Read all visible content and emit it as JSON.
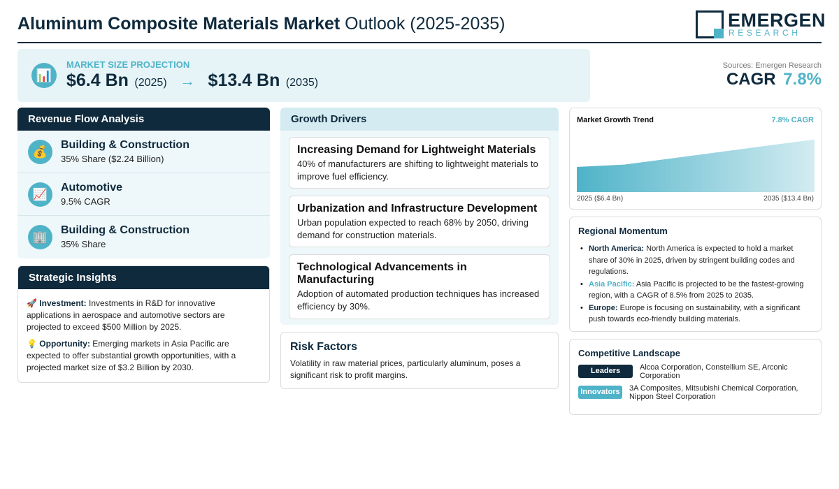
{
  "header": {
    "title_bold": "Aluminum Composite Materials Market",
    "title_light": "Outlook (2025-2035)",
    "logo_main": "EMERGEN",
    "logo_sub": "RESEARCH"
  },
  "market_size": {
    "label": "MARKET SIZE PROJECTION",
    "start_value": "$6.4 Bn",
    "start_year": "(2025)",
    "arrow": "→",
    "end_value": "$13.4 Bn",
    "end_year": "(2035)",
    "icon": "bar-chart-icon"
  },
  "sources": "Sources: Emergen Research",
  "cagr": {
    "label": "CAGR",
    "value": "7.8%"
  },
  "revenue_flow": {
    "title": "Revenue Flow Analysis",
    "items": [
      {
        "icon": "money-bag-icon",
        "glyph": "💰",
        "title": "Building & Construction",
        "sub": "35% Share ($2.24 Billion)"
      },
      {
        "icon": "trend-up-icon",
        "glyph": "📈",
        "title": "Automotive",
        "sub": "9.5% CAGR"
      },
      {
        "icon": "building-icon",
        "glyph": "🏢",
        "title": "Building & Construction",
        "sub": "35% Share"
      }
    ]
  },
  "strategic": {
    "title": "Strategic Insights",
    "items": [
      {
        "glyph": "🚀",
        "label": "Investment:",
        "text": "Investments in R&D for innovative applications in aerospace and automotive sectors are projected to exceed $500 Million by 2025."
      },
      {
        "glyph": "💡",
        "label": "Opportunity:",
        "text": "Emerging markets in Asia Pacific are expected to offer substantial growth opportunities, with a projected market size of $3.2 Billion by 2030."
      }
    ]
  },
  "drivers": {
    "title": "Growth Drivers",
    "items": [
      {
        "title": "Increasing Demand for Lightweight Materials",
        "text": "40% of manufacturers are shifting to lightweight materials to improve fuel efficiency."
      },
      {
        "title": "Urbanization and Infrastructure Development",
        "text": "Urban population expected to reach 68% by 2050, driving demand for construction materials."
      },
      {
        "title": "Technological Advancements in Manufacturing",
        "text": "Adoption of automated production techniques has increased efficiency by 30%."
      }
    ]
  },
  "risk": {
    "title": "Risk Factors",
    "text": "Volatility in raw material prices, particularly aluminum, poses a significant risk to profit margins."
  },
  "trend": {
    "title": "Market Growth Trend",
    "cagr_label": "7.8% CAGR",
    "start_label": "2025 ($6.4 Bn)",
    "end_label": "2035 ($13.4 Bn)"
  },
  "chart_data": {
    "type": "area",
    "x": [
      2025,
      2027,
      2031,
      2035
    ],
    "values": [
      6.4,
      7.0,
      10.2,
      13.4
    ],
    "title": "Market Growth Trend",
    "xlabel": "",
    "ylabel": "",
    "grid": false,
    "color": "#4fb3c8"
  },
  "regional": {
    "title": "Regional Momentum",
    "items": [
      {
        "label": "North America:",
        "text": "North America is expected to hold a market share of 30% in 2025, driven by stringent building codes and regulations.",
        "accent": false
      },
      {
        "label": "Asia Pacific:",
        "text": "Asia Pacific is projected to be the fastest-growing region, with a CAGR of 8.5% from 2025 to 2035.",
        "accent": true
      },
      {
        "label": "Europe:",
        "text": "Europe is focusing on sustainability, with a significant push towards eco-friendly building materials.",
        "accent": false
      }
    ]
  },
  "competitive": {
    "title": "Competitive Landscape",
    "leaders_label": "Leaders",
    "leaders_text": "Alcoa Corporation, Constellium SE, Arconic Corporation",
    "innovators_label": "Innovators",
    "innovators_text": "3A Composites, Mitsubishi Chemical Corporation, Nippon Steel Corporation"
  },
  "colors": {
    "navy": "#0f2a3d",
    "accent": "#4fb3c8",
    "panel_bg": "#eef7f9"
  }
}
